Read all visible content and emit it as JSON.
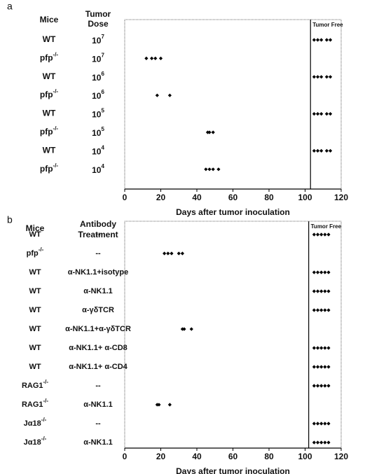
{
  "chart_data": [
    {
      "type": "strip",
      "panel": "a",
      "mice_header": "Mice",
      "group_header": [
        "Tumor",
        "Dose"
      ],
      "xlabel": "Days after tumor inoculation",
      "zone_label": "Tumor Free",
      "divider": 103,
      "xlim": [
        0,
        120
      ],
      "xticks": [
        0,
        20,
        40,
        60,
        80,
        100,
        120
      ],
      "color": "#000000",
      "rows": [
        {
          "mouse": "WT",
          "group": "10",
          "group_sup": "7",
          "values": [
            105,
            107,
            109,
            112,
            114
          ]
        },
        {
          "mouse": "pfp",
          "mouse_sup": "-/-",
          "group": "10",
          "group_sup": "7",
          "values": [
            12,
            15,
            17,
            20
          ]
        },
        {
          "mouse": "WT",
          "group": "10",
          "group_sup": "6",
          "values": [
            105,
            107,
            109,
            112,
            114
          ]
        },
        {
          "mouse": "pfp",
          "mouse_sup": "-/-",
          "group": "10",
          "group_sup": "6",
          "values": [
            18,
            25
          ]
        },
        {
          "mouse": "WT",
          "group": "10",
          "group_sup": "5",
          "values": [
            105,
            107,
            109,
            112,
            114
          ]
        },
        {
          "mouse": "pfp",
          "mouse_sup": "-/-",
          "group": "10",
          "group_sup": "5",
          "values": [
            46,
            47,
            49
          ]
        },
        {
          "mouse": "WT",
          "group": "10",
          "group_sup": "4",
          "values": [
            105,
            107,
            109,
            112,
            114
          ]
        },
        {
          "mouse": "pfp",
          "mouse_sup": "-/-",
          "group": "10",
          "group_sup": "4",
          "values": [
            45,
            47,
            49,
            52
          ]
        }
      ]
    },
    {
      "type": "strip",
      "panel": "b",
      "mice_header": "Mice",
      "group_header": [
        "Antibody",
        "Treatment"
      ],
      "xlabel": "Days after tumor inoculation",
      "zone_label": "Tumor Free",
      "divider": 102,
      "xlim": [
        0,
        120
      ],
      "xticks": [
        0,
        20,
        40,
        60,
        80,
        100,
        120
      ],
      "color": "#000000",
      "rows": [
        {
          "mouse": "WT",
          "group": "--",
          "values": [
            105,
            107,
            109,
            111,
            113
          ]
        },
        {
          "mouse": "pfp",
          "mouse_sup": "-/-",
          "group": "--",
          "values": [
            22,
            24,
            26,
            30,
            32
          ]
        },
        {
          "mouse": "WT",
          "group": "α-NK1.1+isotype",
          "values": [
            105,
            107,
            109,
            111,
            113
          ]
        },
        {
          "mouse": "WT",
          "group": "α-NK1.1",
          "values": [
            105,
            107,
            109,
            111,
            113
          ]
        },
        {
          "mouse": "WT",
          "group": "α-γδTCR",
          "values": [
            105,
            107,
            109,
            111,
            113
          ]
        },
        {
          "mouse": "WT",
          "group": "α-NK1.1+α-γδTCR",
          "values": [
            32,
            33,
            37
          ]
        },
        {
          "mouse": "WT",
          "group": "α-NK1.1+ α-CD8",
          "values": [
            105,
            107,
            109,
            111,
            113
          ]
        },
        {
          "mouse": "WT",
          "group": "α-NK1.1+ α-CD4",
          "values": [
            105,
            107,
            109,
            111,
            113
          ]
        },
        {
          "mouse": "RAG1",
          "mouse_sup": "-/-",
          "group": "--",
          "values": [
            105,
            107,
            109,
            111,
            113
          ]
        },
        {
          "mouse": "RAG1",
          "mouse_sup": "-/-",
          "group": "α-NK1.1",
          "values": [
            18,
            19,
            25
          ]
        },
        {
          "mouse": "Jα18",
          "mouse_sup": "-/-",
          "group": "--",
          "values": [
            105,
            107,
            109,
            111,
            113
          ]
        },
        {
          "mouse": "Jα18",
          "mouse_sup": "-/-",
          "group": "α-NK1.1",
          "values": [
            105,
            107,
            109,
            111,
            113
          ]
        }
      ]
    }
  ]
}
